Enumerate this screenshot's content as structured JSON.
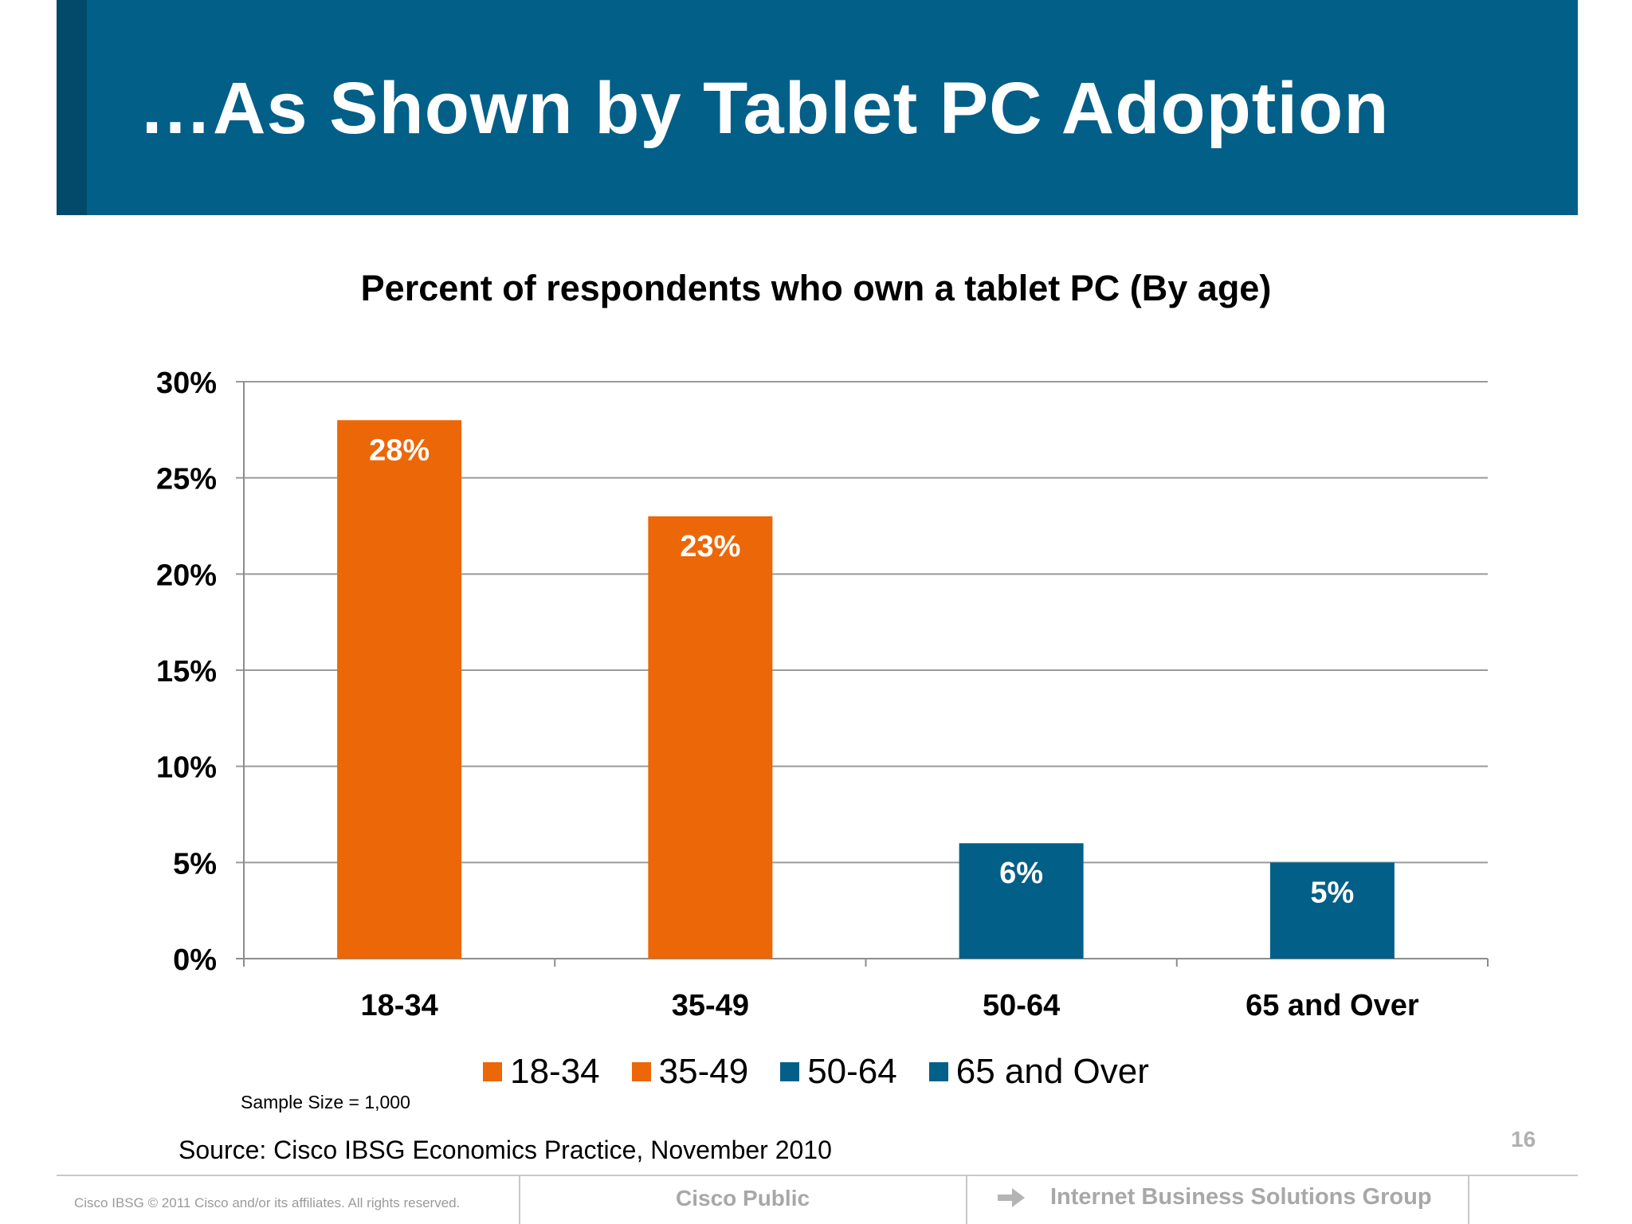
{
  "header": {
    "title": "…As Shown by Tablet PC Adoption",
    "band_color": "#025f88"
  },
  "chart_data": {
    "type": "bar",
    "title": "Percent of respondents who own a tablet PC (By age)",
    "categories": [
      "18-34",
      "35-49",
      "50-64",
      "65 and Over"
    ],
    "values": [
      28,
      23,
      6,
      5
    ],
    "data_labels": [
      "28%",
      "23%",
      "6%",
      "5%"
    ],
    "bar_colors": [
      "#ec6707",
      "#ec6707",
      "#025f88",
      "#025f88"
    ],
    "xlabel": "",
    "ylabel": "",
    "ylim": [
      0,
      30
    ],
    "yticks": [
      0,
      5,
      10,
      15,
      20,
      25,
      30
    ],
    "ytick_labels": [
      "0%",
      "5%",
      "10%",
      "15%",
      "20%",
      "25%",
      "30%"
    ],
    "grid": true,
    "legend": {
      "placement": "bottom",
      "entries": [
        {
          "label": "18-34",
          "color": "#ec6707"
        },
        {
          "label": "35-49",
          "color": "#ec6707"
        },
        {
          "label": "50-64",
          "color": "#025f88"
        },
        {
          "label": "65 and Over",
          "color": "#025f88"
        }
      ]
    }
  },
  "notes": {
    "sample_size": "Sample Size = 1,000",
    "source": "Source: Cisco IBSG Economics Practice, November 2010"
  },
  "footer": {
    "page_number": "16",
    "copyright": "Cisco IBSG © 2011 Cisco and/or its affiliates. All rights reserved.",
    "classification": "Cisco Public",
    "group": "Internet Business Solutions Group",
    "group_icon": "arrow-right-icon"
  }
}
